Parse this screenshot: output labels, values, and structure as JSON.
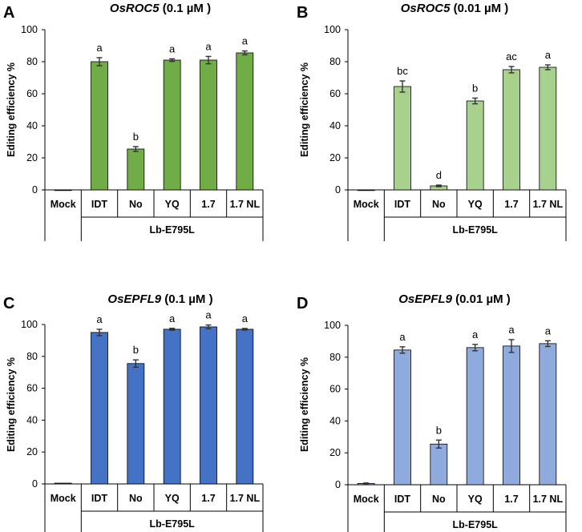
{
  "group_label": "Lb-E795L",
  "ylabel": "Editing efficiency %",
  "chart_data": [
    {
      "type": "bar",
      "panel": "A",
      "title_gene": "OsROC5",
      "title_conc": "(0.1 µM )",
      "categories": [
        "Mock",
        "IDT",
        "No",
        "YQ",
        "1.7",
        "1.7 NL"
      ],
      "values": [
        0,
        80,
        25.5,
        81,
        81,
        85.5
      ],
      "errors": [
        0,
        2.5,
        1.5,
        0.8,
        2.3,
        1.2
      ],
      "significance": [
        "",
        "a",
        "b",
        "a",
        "a",
        "a"
      ],
      "ylim": [
        0,
        100
      ],
      "yticks": [
        0,
        20,
        40,
        60,
        80,
        100
      ],
      "xlabel": "Lb-E795L",
      "ylabel": "Editing efficiency %",
      "color": "#70ad47"
    },
    {
      "type": "bar",
      "panel": "B",
      "title_gene": "OsROC5",
      "title_conc": "(0.01 µM )",
      "categories": [
        "Mock",
        "IDT",
        "No",
        "YQ",
        "1.7",
        "1.7 NL"
      ],
      "values": [
        0,
        64.5,
        2.5,
        55.5,
        75,
        76.5
      ],
      "errors": [
        0,
        3.5,
        0.5,
        1.8,
        2,
        1.5
      ],
      "significance": [
        "",
        "bc",
        "d",
        "b",
        "ac",
        "a"
      ],
      "ylim": [
        0,
        100
      ],
      "yticks": [
        0,
        20,
        40,
        60,
        80,
        100
      ],
      "xlabel": "Lb-E795L",
      "ylabel": "Editing efficiency %",
      "color": "#a9d18e"
    },
    {
      "type": "bar",
      "panel": "C",
      "title_gene": "OsEPFL9",
      "title_conc": "(0.1 µM )",
      "categories": [
        "Mock",
        "IDT",
        "No",
        "YQ",
        "1.7",
        "1.7 NL"
      ],
      "values": [
        0.5,
        95,
        75.5,
        97,
        98.5,
        97
      ],
      "errors": [
        0,
        2,
        2.3,
        0.6,
        1.2,
        0.5
      ],
      "significance": [
        "",
        "a",
        "b",
        "a",
        "a",
        "a"
      ],
      "ylim": [
        0,
        100
      ],
      "yticks": [
        0,
        20,
        40,
        60,
        80,
        100
      ],
      "xlabel": "Lb-E795L",
      "ylabel": "Editing efficiency %",
      "color": "#4472c4"
    },
    {
      "type": "bar",
      "panel": "D",
      "title_gene": "OsEPFL9",
      "title_conc": "(0.01 µM )",
      "categories": [
        "Mock",
        "IDT",
        "No",
        "YQ",
        "1.7",
        "1.7 NL"
      ],
      "values": [
        0.8,
        84.5,
        25.5,
        86,
        87,
        88.5
      ],
      "errors": [
        0.3,
        2,
        2.5,
        2,
        4,
        1.8
      ],
      "significance": [
        "",
        "a",
        "b",
        "a",
        "a",
        "a"
      ],
      "ylim": [
        0,
        100
      ],
      "yticks": [
        0,
        20,
        40,
        60,
        80,
        100
      ],
      "xlabel": "Lb-E795L",
      "ylabel": "Editing efficiency %",
      "color": "#8faadc"
    }
  ]
}
